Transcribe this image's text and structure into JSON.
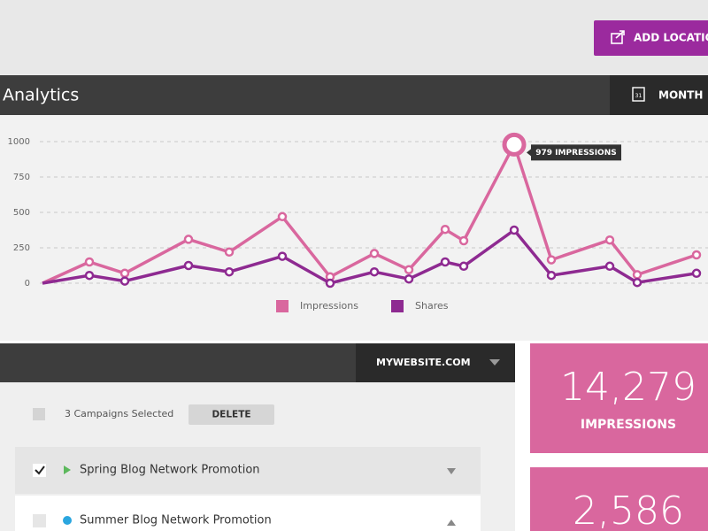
{
  "top_bar": {
    "button": "ADD LOCATION"
  },
  "header": {
    "title": "Analytics",
    "calendar_day": "31",
    "period": "MONTH"
  },
  "chart_data": {
    "type": "line",
    "categories": [
      null,
      null,
      null,
      null,
      null,
      null,
      null,
      null,
      null,
      null,
      null,
      null,
      null,
      null,
      null,
      null
    ],
    "series": [
      {
        "name": "Impressions",
        "color": "#d9679e",
        "values": [
          0,
          150,
          70,
          310,
          220,
          470,
          45,
          210,
          95,
          380,
          300,
          979,
          165,
          305,
          60,
          200
        ]
      },
      {
        "name": "Shares",
        "color": "#8e2a91",
        "values": [
          0,
          55,
          15,
          125,
          80,
          190,
          0,
          80,
          30,
          150,
          120,
          375,
          55,
          120,
          5,
          70
        ]
      }
    ],
    "ylim": [
      0,
      1000
    ],
    "yticks": [
      0,
      250,
      500,
      750,
      1000
    ],
    "grid": true,
    "annotation": {
      "text": "979 IMPRESSIONS",
      "series": 0,
      "index": 11
    }
  },
  "campaigns": {
    "site": "MYWEBSITE.COM",
    "selected": "3 Campaigns Selected",
    "delete": "DELETE",
    "rows": [
      "Spring Blog Network Promotion",
      "Summer Blog Network Promotion"
    ]
  },
  "stats": [
    {
      "value": "14,279",
      "label": "IMPRESSIONS"
    },
    {
      "value": "2,586"
    }
  ]
}
